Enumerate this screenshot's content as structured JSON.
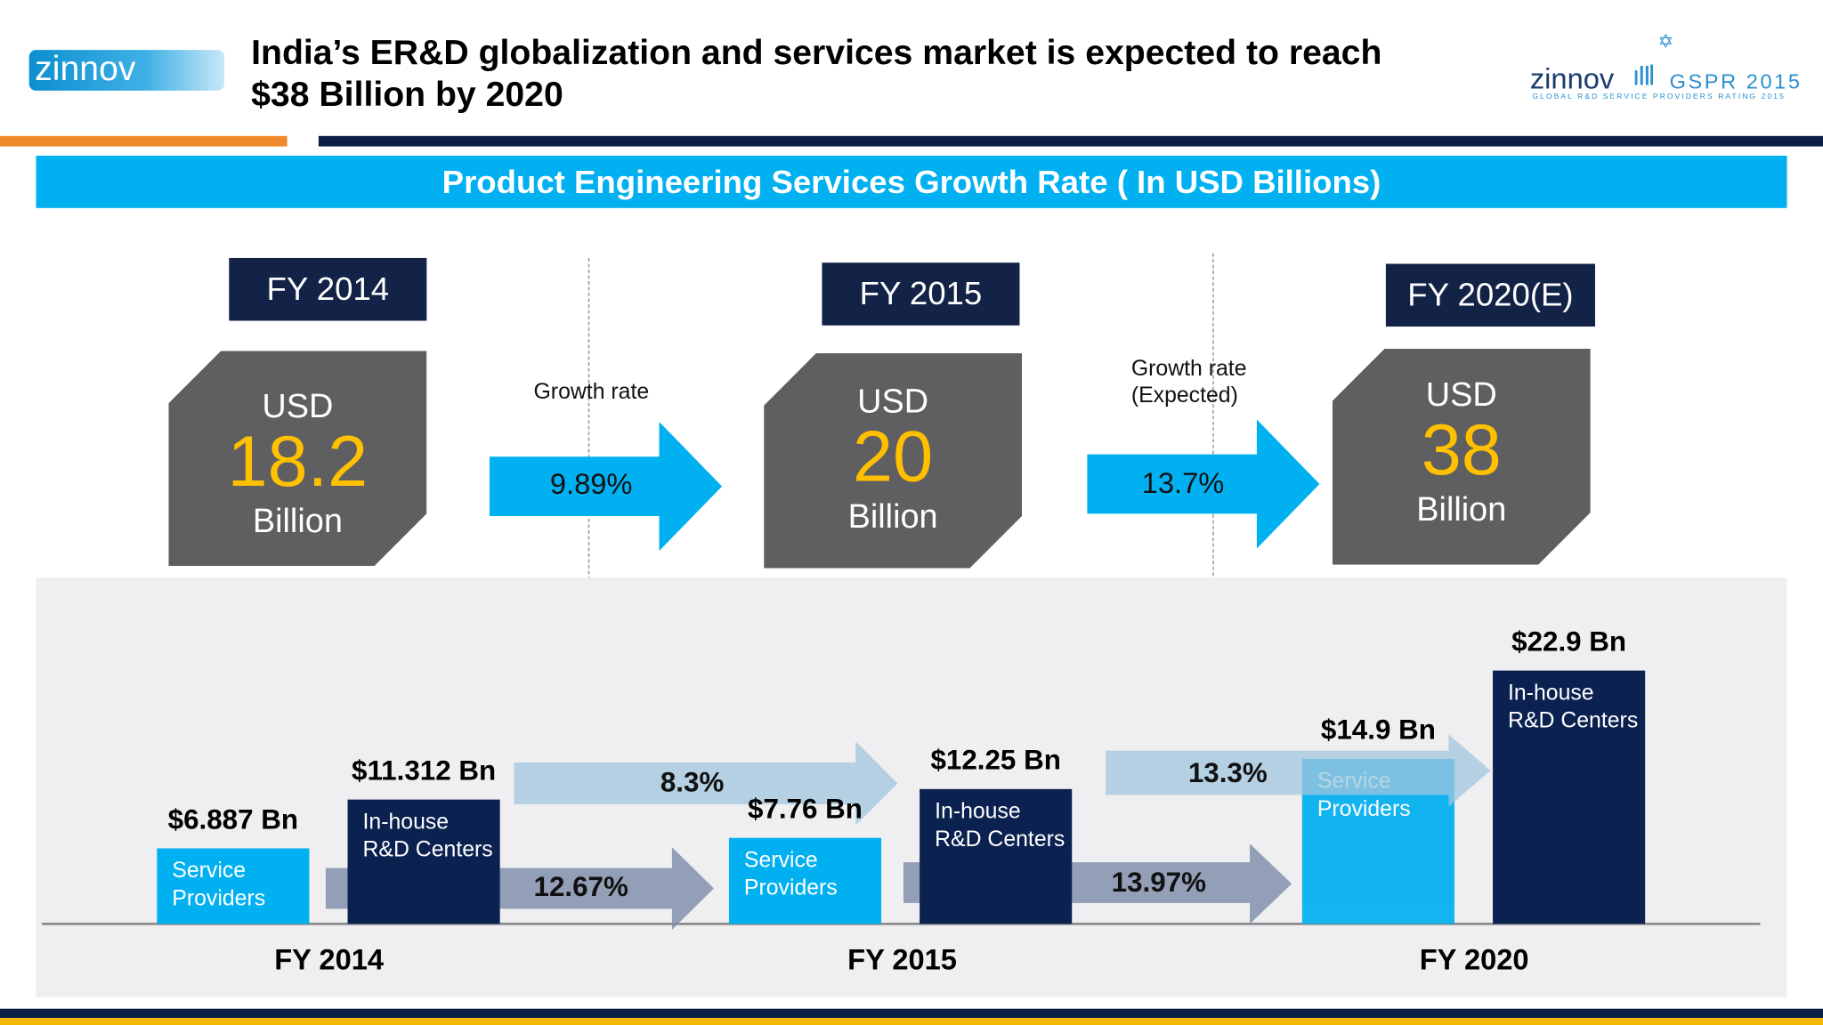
{
  "header": {
    "title_line1": "India’s ER&D globalization and services market is expected to reach",
    "title_line2": "$38 Billion by 2020",
    "logo_left": "zinnov",
    "logo_right": {
      "brand": "zinnov",
      "mark": "GSPR 2015",
      "tagline": "GLOBAL R&D SERVICE PROVIDERS RATING 2015"
    }
  },
  "band_title": "Product Engineering Services Growth Rate ( In USD Billions)",
  "totals": [
    {
      "year": "FY 2014",
      "currency": "USD",
      "value": "18.2",
      "unit": "Billion"
    },
    {
      "year": "FY 2015",
      "currency": "USD",
      "value": "20",
      "unit": "Billion"
    },
    {
      "year": "FY 2020(E)",
      "currency": "USD",
      "value": "38",
      "unit": "Billion"
    }
  ],
  "growth": [
    {
      "label": "Growth rate",
      "value": "9.89%"
    },
    {
      "label": "Growth rate\n(Expected)",
      "label_line1": "Growth rate",
      "label_line2": "(Expected)",
      "value": "13.7%"
    }
  ],
  "colors": {
    "service_providers": "#00b0f0",
    "inhouse": "#0b2150",
    "navy": "#132347",
    "box": "#5f5f61",
    "value": "#ffc000",
    "orange": "#f0892a",
    "gold": "#f5b800"
  },
  "chart_data": {
    "type": "bar",
    "categories": [
      "FY 2014",
      "FY 2015",
      "FY 2020"
    ],
    "series": [
      {
        "name": "Service Providers",
        "name_line1": "Service",
        "name_line2": "Providers",
        "values": [
          6.887,
          7.76,
          14.9
        ],
        "labels": [
          "$6.887 Bn",
          "$7.76 Bn",
          "$14.9 Bn"
        ]
      },
      {
        "name": "In-house R&D Centers",
        "name_line1": "In-house",
        "name_line2": "R&D Centers",
        "values": [
          11.312,
          12.25,
          22.9
        ],
        "labels": [
          "$11.312 Bn",
          "$12.25 Bn",
          "$22.9 Bn"
        ]
      }
    ],
    "growth_arrows": [
      {
        "series": "In-house R&D Centers",
        "from": "FY 2014",
        "to": "FY 2015",
        "label": "8.3%"
      },
      {
        "series": "Service Providers",
        "from": "FY 2014",
        "to": "FY 2015",
        "label": "12.67%"
      },
      {
        "series": "In-house R&D Centers",
        "from": "FY 2015",
        "to": "FY 2020",
        "label": "13.3%"
      },
      {
        "series": "Service Providers",
        "from": "FY 2015",
        "to": "FY 2020",
        "label": "13.97%"
      }
    ],
    "grid": false
  }
}
